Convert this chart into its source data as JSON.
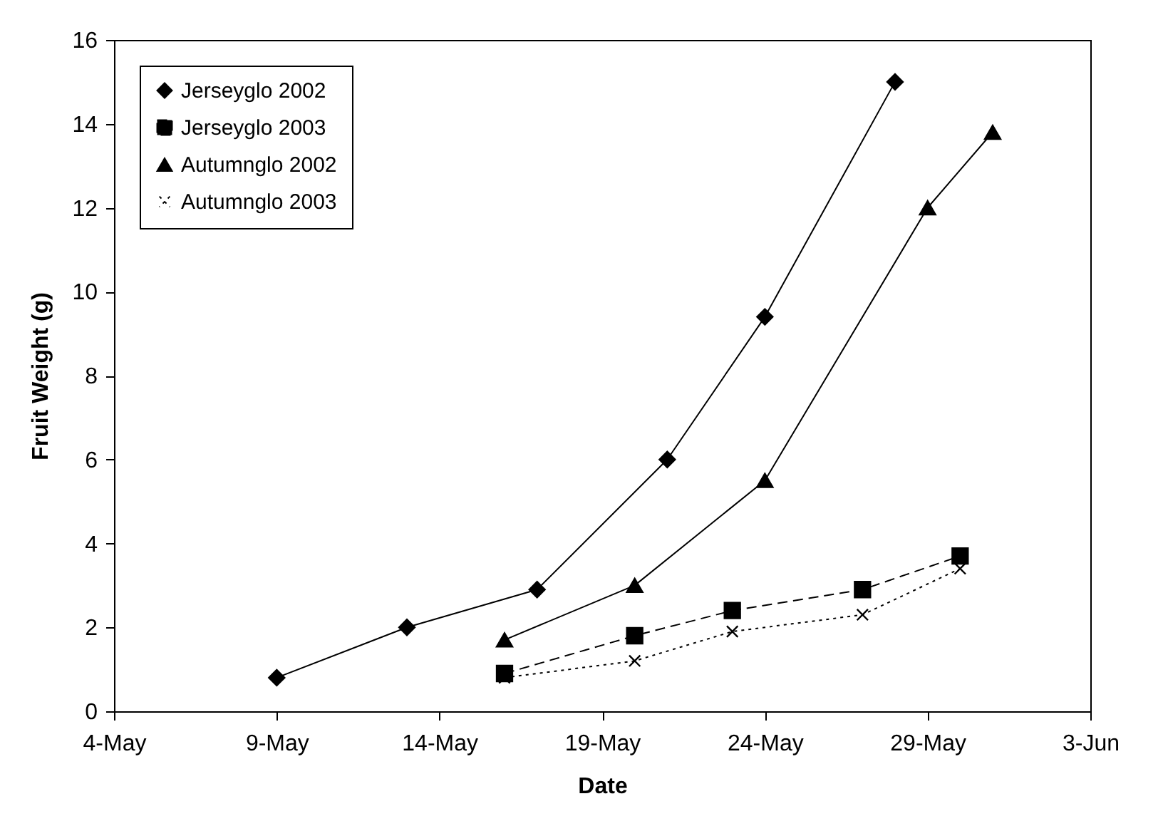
{
  "chart_data": {
    "type": "line",
    "xlabel": "Date",
    "ylabel": "Fruit Weight (g)",
    "xlim": [
      "--05-04",
      "--06-03"
    ],
    "xticks": [
      {
        "value": "--05-04",
        "label": "4-May"
      },
      {
        "value": "--05-09",
        "label": "9-May"
      },
      {
        "value": "--05-14",
        "label": "14-May"
      },
      {
        "value": "--05-19",
        "label": "19-May"
      },
      {
        "value": "--05-24",
        "label": "24-May"
      },
      {
        "value": "--05-29",
        "label": "29-May"
      },
      {
        "value": "--06-03",
        "label": "3-Jun"
      }
    ],
    "ylim": [
      0,
      16
    ],
    "yticks": [
      0,
      2,
      4,
      6,
      8,
      10,
      12,
      14,
      16
    ],
    "grid": false,
    "legend": "top left",
    "series": [
      {
        "name": "Jerseyglo 2002",
        "color": "#000000",
        "marker": "diamond",
        "line_style": "solid",
        "x": [
          "--05-09",
          "--05-13",
          "--05-17",
          "--05-21",
          "--05-24",
          "--05-28"
        ],
        "values": [
          0.8,
          2.0,
          2.9,
          6.0,
          9.4,
          15.0
        ]
      },
      {
        "name": "Jerseyglo 2003",
        "color": "#000000",
        "marker": "square",
        "line_style": "dashed",
        "x": [
          "--05-16",
          "--05-20",
          "--05-23",
          "--05-27",
          "--05-30"
        ],
        "values": [
          0.9,
          1.8,
          2.4,
          2.9,
          3.7
        ]
      },
      {
        "name": "Autumnglo 2002",
        "color": "#000000",
        "marker": "triangle",
        "line_style": "solid",
        "x": [
          "--05-16",
          "--05-20",
          "--05-24",
          "--05-29",
          "--05-31"
        ],
        "values": [
          1.7,
          3.0,
          5.5,
          12.0,
          13.8
        ]
      },
      {
        "name": "Autumnglo 2003",
        "color": "#000000",
        "marker": "cross",
        "line_style": "dotted",
        "x": [
          "--05-16",
          "--05-20",
          "--05-23",
          "--05-27",
          "--05-30"
        ],
        "values": [
          0.8,
          1.2,
          1.9,
          2.3,
          3.4
        ]
      }
    ]
  }
}
